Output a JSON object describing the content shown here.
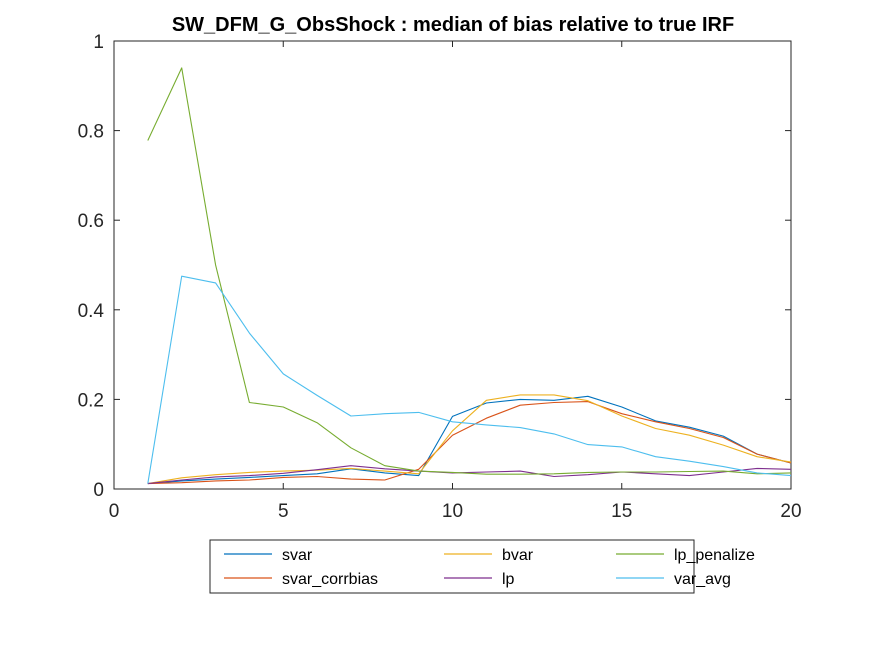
{
  "chart_data": {
    "type": "line",
    "title": "SW_DFM_G_ObsShock : median of bias relative to true IRF",
    "xlabel": "",
    "ylabel": "",
    "xlim": [
      0,
      20
    ],
    "ylim": [
      0,
      1
    ],
    "xticks": [
      0,
      5,
      10,
      15,
      20
    ],
    "yticks": [
      0,
      0.2,
      0.4,
      0.6,
      0.8,
      1
    ],
    "xtick_labels": [
      "0",
      "5",
      "10",
      "15",
      "20"
    ],
    "ytick_labels": [
      "0",
      "0.2",
      "0.4",
      "0.6",
      "0.8",
      "1"
    ],
    "grid": false,
    "legend_placement": "bottom-outside",
    "legend_columns": 3,
    "x": [
      1,
      2,
      3,
      4,
      5,
      6,
      7,
      8,
      9,
      10,
      11,
      12,
      13,
      14,
      15,
      16,
      17,
      18,
      19,
      20
    ],
    "series": [
      {
        "name": "svar",
        "color": "#0072BD",
        "values": [
          0.012,
          0.018,
          0.022,
          0.026,
          0.03,
          0.034,
          0.045,
          0.036,
          0.03,
          0.162,
          0.192,
          0.2,
          0.198,
          0.207,
          0.183,
          0.152,
          0.138,
          0.118,
          0.078,
          0.058
        ]
      },
      {
        "name": "svar_corrbias",
        "color": "#D95319",
        "values": [
          0.012,
          0.014,
          0.018,
          0.02,
          0.026,
          0.028,
          0.022,
          0.02,
          0.044,
          0.12,
          0.158,
          0.187,
          0.193,
          0.195,
          0.168,
          0.15,
          0.135,
          0.115,
          0.078,
          0.058
        ]
      },
      {
        "name": "bvar",
        "color": "#EDB120",
        "values": [
          0.012,
          0.025,
          0.032,
          0.037,
          0.04,
          0.042,
          0.046,
          0.04,
          0.034,
          0.13,
          0.198,
          0.21,
          0.21,
          0.197,
          0.163,
          0.135,
          0.12,
          0.098,
          0.072,
          0.06
        ]
      },
      {
        "name": "lp",
        "color": "#7E2F8E",
        "values": [
          0.012,
          0.02,
          0.027,
          0.03,
          0.035,
          0.043,
          0.052,
          0.045,
          0.04,
          0.036,
          0.038,
          0.04,
          0.028,
          0.032,
          0.038,
          0.034,
          0.03,
          0.038,
          0.046,
          0.044
        ]
      },
      {
        "name": "lp_penalize",
        "color": "#77AC30",
        "values": [
          0.778,
          0.94,
          0.5,
          0.193,
          0.183,
          0.148,
          0.092,
          0.052,
          0.04,
          0.037,
          0.033,
          0.033,
          0.034,
          0.037,
          0.038,
          0.038,
          0.039,
          0.04,
          0.034,
          0.036
        ]
      },
      {
        "name": "var_avg",
        "color": "#4DBEEE",
        "values": [
          0.012,
          0.475,
          0.46,
          0.348,
          0.257,
          0.209,
          0.163,
          0.168,
          0.171,
          0.15,
          0.143,
          0.137,
          0.123,
          0.099,
          0.094,
          0.072,
          0.062,
          0.05,
          0.036,
          0.03
        ]
      }
    ]
  }
}
